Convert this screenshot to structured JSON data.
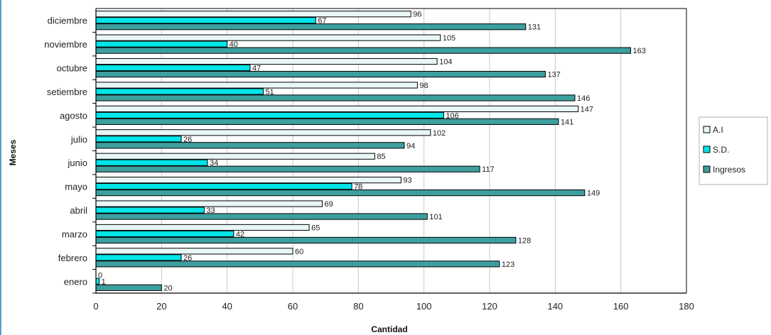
{
  "chart_data": {
    "type": "bar",
    "orientation": "horizontal",
    "xlabel": "Cantidad",
    "ylabel": "Meses",
    "xlim": [
      0,
      180
    ],
    "xticks": [
      0,
      20,
      40,
      60,
      80,
      100,
      120,
      140,
      160,
      180
    ],
    "grid": true,
    "legend_position": "right",
    "categories": [
      "enero",
      "febrero",
      "marzo",
      "abril",
      "mayo",
      "junio",
      "julio",
      "agosto",
      "setiembre",
      "octubre",
      "noviembre",
      "diciembre"
    ],
    "series": [
      {
        "name": "A.I",
        "color": "#e8f6f6",
        "values": [
          0,
          60,
          65,
          69,
          93,
          85,
          102,
          147,
          98,
          104,
          105,
          96
        ]
      },
      {
        "name": "S.D.",
        "color": "#00e5e8",
        "values": [
          1,
          26,
          42,
          33,
          78,
          34,
          26,
          106,
          51,
          47,
          40,
          67
        ]
      },
      {
        "name": "Ingresos",
        "color": "#3d9f9f",
        "values": [
          20,
          123,
          128,
          101,
          149,
          117,
          94,
          141,
          146,
          137,
          163,
          131
        ]
      }
    ]
  }
}
